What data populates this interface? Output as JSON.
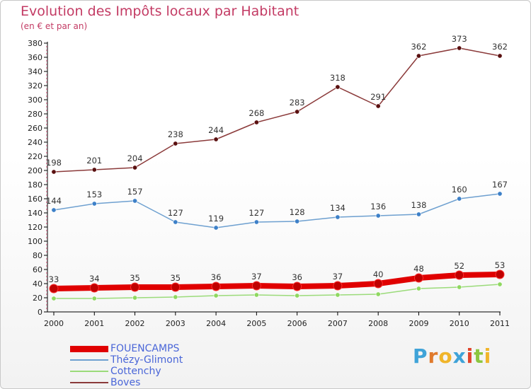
{
  "title": "Evolution des Impôts locaux par Habitant",
  "subtitle": "(en € et par an)",
  "logo": {
    "text": "Proxiti",
    "letters": [
      {
        "ch": "P",
        "color": "#3fa3d8"
      },
      {
        "ch": "r",
        "color": "#e07a2c"
      },
      {
        "ch": "o",
        "color": "#f0b52a"
      },
      {
        "ch": "x",
        "color": "#3fa3d8"
      },
      {
        "ch": "i",
        "color": "#e0452c"
      },
      {
        "ch": "t",
        "color": "#8cc63f"
      },
      {
        "ch": "i",
        "color": "#f0b52a"
      }
    ]
  },
  "chart_data": {
    "type": "line",
    "x": [
      "2000",
      "2001",
      "2002",
      "2003",
      "2004",
      "2005",
      "2006",
      "2007",
      "2008",
      "2009",
      "2010",
      "2011"
    ],
    "ylim": [
      0,
      380
    ],
    "yticks": [
      0,
      20,
      40,
      60,
      80,
      100,
      120,
      140,
      160,
      180,
      200,
      220,
      240,
      260,
      280,
      300,
      320,
      340,
      360,
      380
    ],
    "grid": false,
    "legend_position": "bottom-left",
    "series": [
      {
        "name": "FOUENCAMPS",
        "color": "#e00000",
        "point_color": "#c00000",
        "bold": true,
        "values": [
          33,
          34,
          35,
          35,
          36,
          37,
          36,
          37,
          40,
          48,
          52,
          53
        ],
        "labels": true
      },
      {
        "name": "Thézy-Glimont",
        "color": "#6ea0d0",
        "point_color": "#3d80c8",
        "bold": false,
        "values": [
          144,
          153,
          157,
          127,
          119,
          127,
          128,
          134,
          136,
          138,
          160,
          167
        ],
        "labels": true
      },
      {
        "name": "Cottenchy",
        "color": "#9bdb7a",
        "point_color": "#8fd860",
        "bold": false,
        "values": [
          19,
          19,
          20,
          21,
          23,
          24,
          23,
          24,
          25,
          33,
          35,
          39
        ],
        "labels": false
      },
      {
        "name": "Boves",
        "color": "#8b3a3a",
        "point_color": "#5a1010",
        "bold": false,
        "values": [
          198,
          201,
          204,
          238,
          244,
          268,
          283,
          318,
          291,
          362,
          373,
          362
        ],
        "labels": true
      }
    ]
  }
}
